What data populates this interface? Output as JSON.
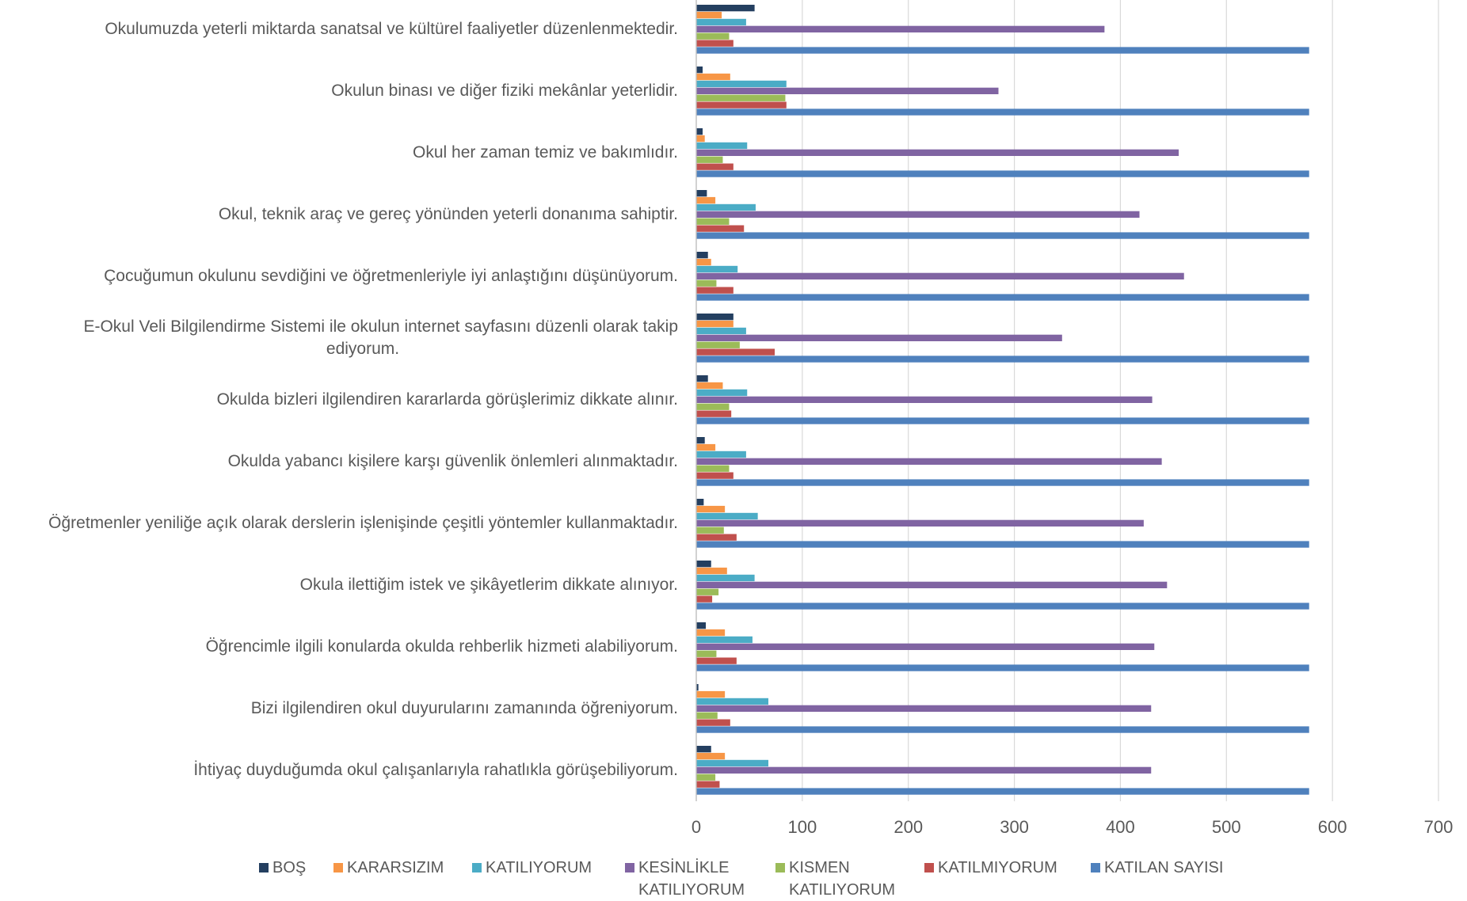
{
  "chart_data": {
    "type": "bar",
    "orientation": "horizontal",
    "categories": [
      "Okulumuzda yeterli miktarda sanatsal ve kültürel faaliyetler düzenlenmektedir.",
      "Okulun binası ve diğer fiziki mekânlar yeterlidir.",
      "Okul her zaman temiz ve bakımlıdır.",
      "Okul, teknik araç ve gereç yönünden yeterli donanıma sahiptir.",
      "Çocuğumun okulunu sevdiğini ve öğretmenleriyle iyi anlaştığını düşünüyorum.",
      "E-Okul Veli Bilgilendirme Sistemi ile okulun internet sayfasını düzenli olarak takip ediyorum.",
      "Okulda bizleri ilgilendiren kararlarda görüşlerimiz dikkate alınır.",
      "Okulda yabancı kişilere karşı güvenlik önlemleri alınmaktadır.",
      "Öğretmenler yeniliğe açık olarak derslerin işlenişinde çeşitli yöntemler kullanmaktadır.",
      "Okula ilettiğim istek ve şikâyetlerim dikkate alınıyor.",
      "Öğrencimle ilgili konularda okulda rehberlik hizmeti alabiliyorum.",
      "Bizi ilgilendiren okul duyurularını zamanında öğreniyorum.",
      "İhtiyaç duyduğumda okul çalışanlarıyla rahatlıkla görüşebiliyorum."
    ],
    "category_label_lines": [
      [
        "Okulumuzda yeterli miktarda sanatsal ve kültürel faaliyetler düzenlenmektedir."
      ],
      [
        "Okulun binası ve diğer fiziki mekânlar yeterlidir."
      ],
      [
        "Okul her zaman temiz ve bakımlıdır."
      ],
      [
        "Okul, teknik araç ve gereç yönünden yeterli donanıma sahiptir."
      ],
      [
        "Çocuğumun okulunu sevdiğini ve öğretmenleriyle iyi anlaştığını düşünüyorum."
      ],
      [
        "E-Okul Veli Bilgilendirme Sistemi ile okulun internet sayfasını düzenli olarak takip",
        "ediyorum."
      ],
      [
        "Okulda bizleri ilgilendiren kararlarda görüşlerimiz dikkate alınır."
      ],
      [
        "Okulda yabancı kişilere karşı güvenlik önlemleri alınmaktadır."
      ],
      [
        "Öğretmenler yeniliğe açık olarak derslerin işlenişinde çeşitli yöntemler kullanmaktadır."
      ],
      [
        "Okula ilettiğim istek ve şikâyetlerim dikkate alınıyor."
      ],
      [
        "Öğrencimle ilgili konularda okulda rehberlik hizmeti alabiliyorum."
      ],
      [
        "Bizi ilgilendiren okul duyurularını zamanında öğreniyorum."
      ],
      [
        "İhtiyaç duyduğumda okul çalışanlarıyla rahatlıkla görüşebiliyorum."
      ]
    ],
    "series": [
      {
        "name": "BOŞ",
        "color": "#243F60",
        "values": [
          55,
          6,
          6,
          10,
          11,
          35,
          11,
          8,
          7,
          14,
          9,
          2,
          14
        ]
      },
      {
        "name": "KARARSIZIM",
        "color": "#F79646",
        "values": [
          24,
          32,
          8,
          18,
          14,
          35,
          25,
          18,
          27,
          29,
          27,
          27,
          27
        ]
      },
      {
        "name": "KATILIYORUM",
        "color": "#4BACC6",
        "values": [
          47,
          85,
          48,
          56,
          39,
          47,
          48,
          47,
          58,
          55,
          53,
          68,
          68
        ]
      },
      {
        "name": "KESİNLİKLE KATILIYORUM",
        "color": "#8064A2",
        "values": [
          385,
          285,
          455,
          418,
          460,
          345,
          430,
          439,
          422,
          444,
          432,
          429,
          429
        ]
      },
      {
        "name": "KISMEN KATILIYORUM",
        "color": "#9BBB59",
        "values": [
          31,
          84,
          25,
          31,
          19,
          41,
          31,
          31,
          26,
          21,
          19,
          20,
          18
        ]
      },
      {
        "name": "KATILMIYORUM",
        "color": "#C0504D",
        "values": [
          35,
          85,
          35,
          45,
          35,
          74,
          33,
          35,
          38,
          15,
          38,
          32,
          22
        ]
      },
      {
        "name": "KATILAN SAYISI",
        "color": "#4F81BD",
        "values": [
          578,
          578,
          578,
          578,
          578,
          578,
          578,
          578,
          578,
          578,
          578,
          578,
          578
        ]
      }
    ],
    "xlim": [
      0,
      700
    ],
    "x_ticks": [
      "0",
      "100",
      "200",
      "300",
      "400",
      "500",
      "600",
      "700"
    ],
    "grid": true,
    "legend_position": "bottom",
    "legend_label_lines": [
      [
        "BOŞ"
      ],
      [
        "KARARSIZIM"
      ],
      [
        "KATILIYORUM"
      ],
      [
        "KESİNLİKLE",
        "KATILIYORUM"
      ],
      [
        "KISMEN",
        "KATILIYORUM"
      ],
      [
        "KATILMIYORUM"
      ],
      [
        "KATILAN SAYISI"
      ]
    ],
    "title": "",
    "xlabel": "",
    "ylabel": ""
  }
}
